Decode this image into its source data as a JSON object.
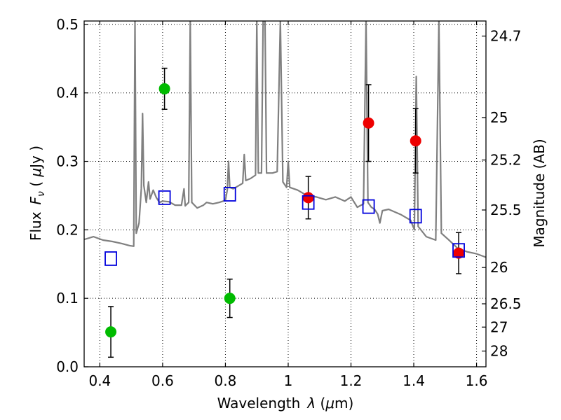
{
  "chart_data": {
    "type": "scatter",
    "xlabel_text": "Wavelength",
    "xlabel_symbol": "λ",
    "xlabel_unit_open": " (",
    "xlabel_unit_mu": "μ",
    "xlabel_unit_close": "m)",
    "ylabel_text": "Flux",
    "ylabel_symbol": "F",
    "ylabel_symbol_sub": "ν",
    "ylabel_unit_open": " ( ",
    "ylabel_unit_mu": "μ",
    "ylabel_unit_close": "Jy )",
    "y2label": "Magnitude (AB)",
    "xlim": [
      0.35,
      1.63
    ],
    "ylim": [
      0.0,
      0.505
    ],
    "grid": true,
    "x_ticks": [
      0.4,
      0.6,
      0.8,
      1.0,
      1.2,
      1.4,
      1.6
    ],
    "x_tick_labels": [
      "0.4",
      "0.6",
      "0.8",
      "1",
      "1.2",
      "1.4",
      "1.6"
    ],
    "y_ticks": [
      0.0,
      0.1,
      0.2,
      0.3,
      0.4,
      0.5
    ],
    "y_tick_labels": [
      "0.0",
      "0.1",
      "0.2",
      "0.3",
      "0.4",
      "0.5"
    ],
    "y2_ticks": [
      {
        "flux": 0.483,
        "label": "24.7"
      },
      {
        "flux": 0.364,
        "label": "25"
      },
      {
        "flux": 0.302,
        "label": "25.2"
      },
      {
        "flux": 0.229,
        "label": "25.5"
      },
      {
        "flux": 0.145,
        "label": "26"
      },
      {
        "flux": 0.092,
        "label": "26.5"
      },
      {
        "flux": 0.058,
        "label": "27"
      },
      {
        "flux": 0.023,
        "label": "28"
      }
    ],
    "series": [
      {
        "marker": "circle",
        "color": "#00bb00",
        "points": [
          {
            "x": 0.435,
            "y": 0.051,
            "err": 0.037
          },
          {
            "x": 0.606,
            "y": 0.406,
            "err": 0.03
          },
          {
            "x": 0.814,
            "y": 0.1,
            "err": 0.028
          }
        ]
      },
      {
        "marker": "circle",
        "color": "#ee0000",
        "points": [
          {
            "x": 1.064,
            "y": 0.247,
            "err": 0.031
          },
          {
            "x": 1.256,
            "y": 0.356,
            "err": 0.056
          },
          {
            "x": 1.406,
            "y": 0.33,
            "err": 0.047
          },
          {
            "x": 1.543,
            "y": 0.166,
            "err": 0.03
          }
        ]
      },
      {
        "marker": "square",
        "color": "#0000dd",
        "points": [
          {
            "x": 0.435,
            "y": 0.158
          },
          {
            "x": 0.606,
            "y": 0.247
          },
          {
            "x": 0.814,
            "y": 0.252
          },
          {
            "x": 1.064,
            "y": 0.24
          },
          {
            "x": 1.256,
            "y": 0.234
          },
          {
            "x": 1.406,
            "y": 0.22
          },
          {
            "x": 1.543,
            "y": 0.17
          }
        ]
      }
    ],
    "spectrum": {
      "color": "#808080",
      "points": [
        [
          0.35,
          0.186
        ],
        [
          0.38,
          0.19
        ],
        [
          0.41,
          0.185
        ],
        [
          0.44,
          0.183
        ],
        [
          0.47,
          0.18
        ],
        [
          0.495,
          0.177
        ],
        [
          0.508,
          0.176
        ],
        [
          0.512,
          0.505
        ],
        [
          0.516,
          0.195
        ],
        [
          0.525,
          0.21
        ],
        [
          0.532,
          0.26
        ],
        [
          0.536,
          0.37
        ],
        [
          0.54,
          0.265
        ],
        [
          0.548,
          0.24
        ],
        [
          0.555,
          0.27
        ],
        [
          0.56,
          0.245
        ],
        [
          0.57,
          0.258
        ],
        [
          0.58,
          0.247
        ],
        [
          0.59,
          0.24
        ],
        [
          0.6,
          0.242
        ],
        [
          0.62,
          0.241
        ],
        [
          0.64,
          0.236
        ],
        [
          0.66,
          0.236
        ],
        [
          0.668,
          0.26
        ],
        [
          0.672,
          0.235
        ],
        [
          0.683,
          0.24
        ],
        [
          0.688,
          0.505
        ],
        [
          0.693,
          0.24
        ],
        [
          0.71,
          0.232
        ],
        [
          0.73,
          0.236
        ],
        [
          0.74,
          0.24
        ],
        [
          0.76,
          0.238
        ],
        [
          0.78,
          0.24
        ],
        [
          0.8,
          0.243
        ],
        [
          0.806,
          0.258
        ],
        [
          0.81,
          0.3
        ],
        [
          0.814,
          0.262
        ],
        [
          0.825,
          0.26
        ],
        [
          0.84,
          0.264
        ],
        [
          0.855,
          0.268
        ],
        [
          0.86,
          0.31
        ],
        [
          0.865,
          0.272
        ],
        [
          0.88,
          0.275
        ],
        [
          0.896,
          0.28
        ],
        [
          0.9,
          0.505
        ],
        [
          0.905,
          0.283
        ],
        [
          0.915,
          0.283
        ],
        [
          0.92,
          0.505
        ],
        [
          0.926,
          0.505
        ],
        [
          0.931,
          0.283
        ],
        [
          0.95,
          0.283
        ],
        [
          0.965,
          0.285
        ],
        [
          0.975,
          0.505
        ],
        [
          0.983,
          0.27
        ],
        [
          0.995,
          0.262
        ],
        [
          1.0,
          0.3
        ],
        [
          1.005,
          0.262
        ],
        [
          1.03,
          0.258
        ],
        [
          1.06,
          0.25
        ],
        [
          1.09,
          0.248
        ],
        [
          1.12,
          0.244
        ],
        [
          1.15,
          0.248
        ],
        [
          1.18,
          0.242
        ],
        [
          1.2,
          0.248
        ],
        [
          1.22,
          0.233
        ],
        [
          1.24,
          0.238
        ],
        [
          1.248,
          0.505
        ],
        [
          1.254,
          0.24
        ],
        [
          1.265,
          0.233
        ],
        [
          1.275,
          0.23
        ],
        [
          1.285,
          0.223
        ],
        [
          1.292,
          0.21
        ],
        [
          1.3,
          0.228
        ],
        [
          1.32,
          0.23
        ],
        [
          1.36,
          0.222
        ],
        [
          1.39,
          0.214
        ],
        [
          1.402,
          0.2
        ],
        [
          1.408,
          0.424
        ],
        [
          1.414,
          0.205
        ],
        [
          1.44,
          0.19
        ],
        [
          1.47,
          0.185
        ],
        [
          1.48,
          0.505
        ],
        [
          1.488,
          0.195
        ],
        [
          1.51,
          0.186
        ],
        [
          1.54,
          0.173
        ],
        [
          1.57,
          0.168
        ],
        [
          1.6,
          0.165
        ],
        [
          1.63,
          0.16
        ]
      ]
    }
  }
}
